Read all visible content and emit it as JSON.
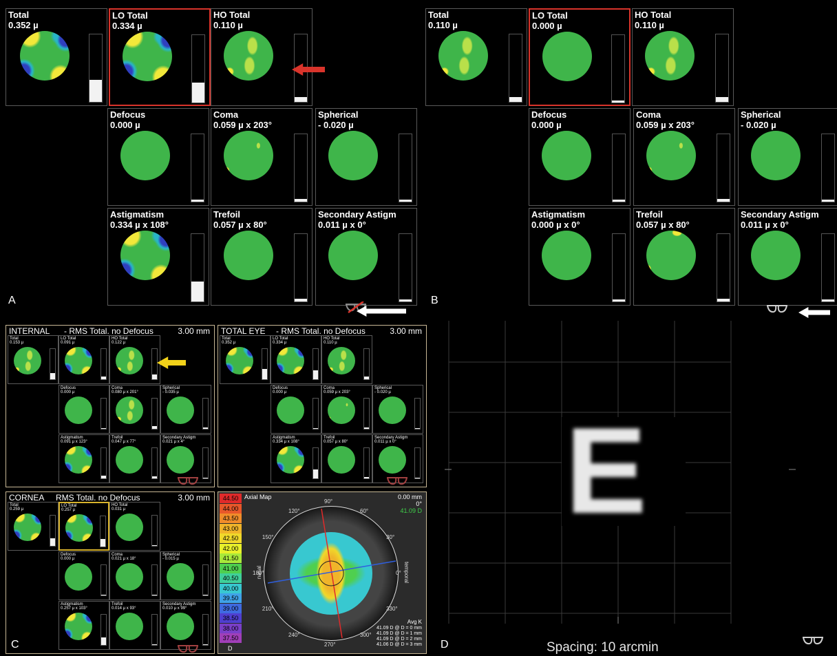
{
  "colors": {
    "green": "#3fb54a",
    "yellow": "#f2e83a",
    "blue": "#2f3fbf",
    "cyan": "#28b5c8",
    "red": "#d9342b",
    "ysel": "#d8b32c"
  },
  "panelA": {
    "letter": "A",
    "cells": [
      {
        "id": "total",
        "title": "Total",
        "value": "0.352 µ",
        "pattern": "astig",
        "level": 0.33
      },
      {
        "id": "lo",
        "title": "LO Total",
        "value": "0.334 µ",
        "pattern": "astig",
        "level": 0.3,
        "selected": true
      },
      {
        "id": "ho",
        "title": "HO Total",
        "value": "0.110 µ",
        "pattern": "ho",
        "level": 0.07
      },
      {
        "id": "defocus",
        "title": "Defocus",
        "value": "0.000 µ",
        "pattern": "plain",
        "level": 0
      },
      {
        "id": "coma",
        "title": "Coma",
        "value": "0.059 µ x 203°",
        "pattern": "coma",
        "level": 0.04
      },
      {
        "id": "spherical",
        "title": "Spherical",
        "value": "- 0.020 µ",
        "pattern": "plain",
        "level": 0.02
      },
      {
        "id": "astig",
        "title": "Astigmatism",
        "value": "0.334 µ x 108°",
        "pattern": "astig",
        "level": 0.3
      },
      {
        "id": "trefoil",
        "title": "Trefoil",
        "value": "0.057 µ x 80°",
        "pattern": "plain",
        "level": 0.04
      },
      {
        "id": "secastig",
        "title": "Secondary Astigm",
        "value": "0.011 µ x 0°",
        "pattern": "plain",
        "level": 0.02
      }
    ]
  },
  "panelB": {
    "letter": "B",
    "cells": [
      {
        "id": "total",
        "title": "Total",
        "value": "0.110 µ",
        "pattern": "ho",
        "level": 0.07
      },
      {
        "id": "lo",
        "title": "LO Total",
        "value": "0.000 µ",
        "pattern": "plain",
        "level": 0,
        "selected": true
      },
      {
        "id": "ho",
        "title": "HO Total",
        "value": "0.110 µ",
        "pattern": "ho",
        "level": 0.07
      },
      {
        "id": "defocus",
        "title": "Defocus",
        "value": "0.000 µ",
        "pattern": "plain",
        "level": 0
      },
      {
        "id": "coma",
        "title": "Coma",
        "value": "0.059 µ x 203°",
        "pattern": "coma",
        "level": 0.04
      },
      {
        "id": "spherical",
        "title": "Spherical",
        "value": "- 0.020 µ",
        "pattern": "plain",
        "level": 0.02
      },
      {
        "id": "astig",
        "title": "Astigmatism",
        "value": "0.000 µ x 0°",
        "pattern": "plain",
        "level": 0
      },
      {
        "id": "trefoil",
        "title": "Trefoil",
        "value": "0.057 µ x 80°",
        "pattern": "trefoil",
        "level": 0.04
      },
      {
        "id": "secastig",
        "title": "Secondary Astigm",
        "value": "0.011 µ x 0°",
        "pattern": "plain",
        "level": 0.02
      }
    ]
  },
  "internal": {
    "left": "INTERNAL",
    "mid": "- RMS Total. no Defocus",
    "right": "3.00 mm",
    "cells": [
      {
        "title": "Total",
        "value": "0.153 µ",
        "pattern": "ho",
        "level": 0.2
      },
      {
        "title": "LO Total",
        "value": "0.091 µ",
        "pattern": "astig",
        "level": 0.1
      },
      {
        "title": "HO Total",
        "value": "0.122 µ",
        "pattern": "ho",
        "level": 0.15
      },
      {
        "title": "Defocus",
        "value": "0.000 µ",
        "pattern": "plain",
        "level": 0
      },
      {
        "title": "Coma",
        "value": "0.080 µ x 201°",
        "pattern": "ho",
        "level": 0.1
      },
      {
        "title": "Spherical",
        "value": "- 0.035 µ",
        "pattern": "plain",
        "level": 0.05
      },
      {
        "title": "Astigmatism",
        "value": "0.091 µ x 123°",
        "pattern": "astig",
        "level": 0.1
      },
      {
        "title": "Trefoil",
        "value": "0.047 µ x 77°",
        "pattern": "plain",
        "level": 0.06
      },
      {
        "title": "Secondary Astigm",
        "value": "0.021 µ x 4°",
        "pattern": "plain",
        "level": 0.03
      }
    ]
  },
  "totaleye": {
    "left": "TOTAL EYE",
    "mid": "- RMS Total. no Defocus",
    "right": "3.00 mm",
    "cells": [
      {
        "title": "Total",
        "value": "0.352 µ",
        "pattern": "astig",
        "level": 0.33
      },
      {
        "title": "LO Total",
        "value": "0.334 µ",
        "pattern": "astig",
        "level": 0.3
      },
      {
        "title": "HO Total",
        "value": "0.110 µ",
        "pattern": "ho",
        "level": 0.08
      },
      {
        "title": "Defocus",
        "value": "0.000 µ",
        "pattern": "plain",
        "level": 0
      },
      {
        "title": "Coma",
        "value": "0.059 µ x 203°",
        "pattern": "coma",
        "level": 0.05
      },
      {
        "title": "Spherical",
        "value": "- 0.020 µ",
        "pattern": "plain",
        "level": 0.03
      },
      {
        "title": "Astigmatism",
        "value": "0.334 µ x 108°",
        "pattern": "astig",
        "level": 0.3
      },
      {
        "title": "Trefoil",
        "value": "0.057 µ x 80°",
        "pattern": "plain",
        "level": 0.05
      },
      {
        "title": "Secondary Astigm",
        "value": "0.011 µ x 0°",
        "pattern": "plain",
        "level": 0.02
      }
    ]
  },
  "cornea": {
    "left": "CORNEA",
    "mid": "RMS Total. no Defocus",
    "right": "3.00 mm",
    "cells": [
      {
        "title": "Total",
        "value": "0.259 µ",
        "pattern": "astig",
        "level": 0.25
      },
      {
        "title": "LO Total",
        "value": "0.257 µ",
        "pattern": "astig",
        "level": 0.25
      },
      {
        "title": "HO Total",
        "value": "0.031 µ",
        "pattern": "plain",
        "level": 0.03
      },
      {
        "title": "Defocus",
        "value": "0.000 µ",
        "pattern": "plain",
        "level": 0
      },
      {
        "title": "Coma",
        "value": "0.021 µ x 18°",
        "pattern": "plain",
        "level": 0.02
      },
      {
        "title": "Spherical",
        "value": "- 0.015 µ",
        "pattern": "plain",
        "level": 0.02
      },
      {
        "title": "Astigmatism",
        "value": "0.257 µ x 103°",
        "pattern": "astig",
        "level": 0.25
      },
      {
        "title": "Trefoil",
        "value": "0.014 µ x 93°",
        "pattern": "plain",
        "level": 0.02
      },
      {
        "title": "Secondary Astigm",
        "value": "0.010 µ x 99°",
        "pattern": "plain",
        "level": 0.02
      }
    ]
  },
  "axial": {
    "title": "Axial Map",
    "mm": "0.00 mm",
    "deg": "0°",
    "diopter": "41.09 D",
    "scale": [
      "44.50",
      "44.00",
      "43.50",
      "43.00",
      "42.50",
      "42.00",
      "41.50",
      "41.00",
      "40.50",
      "40.00",
      "39.50",
      "39.00",
      "38.50",
      "38.00",
      "37.50"
    ],
    "scaleColors": [
      "#e02a2a",
      "#e8582a",
      "#f08c2a",
      "#f0b42a",
      "#f0d82a",
      "#e8f02a",
      "#a8e83a",
      "#4fcf4f",
      "#3fcf9a",
      "#38c8d0",
      "#3fa2e8",
      "#3f6ae0",
      "#4f3fd0",
      "#7a3fc8",
      "#a03fb8"
    ],
    "unit": "D",
    "degrees": [
      "90°",
      "60°",
      "30°",
      "0°",
      "330°",
      "300°",
      "270°",
      "240°",
      "210°",
      "180°",
      "150°",
      "120°"
    ],
    "nasal": "nasal",
    "temporal": "temporal",
    "avgk": "Avg K",
    "avgkLines": [
      "41.09 D @ D = 0 mm",
      "41.09 D @ D = 1 mm",
      "41.09 D @ D = 2 mm",
      "41.06 D @ D = 3 mm"
    ]
  },
  "panelC": {
    "letter": "C"
  },
  "panelD": {
    "letter": "D",
    "letterE": "E",
    "spacing": "Spacing:  10 arcmin"
  }
}
